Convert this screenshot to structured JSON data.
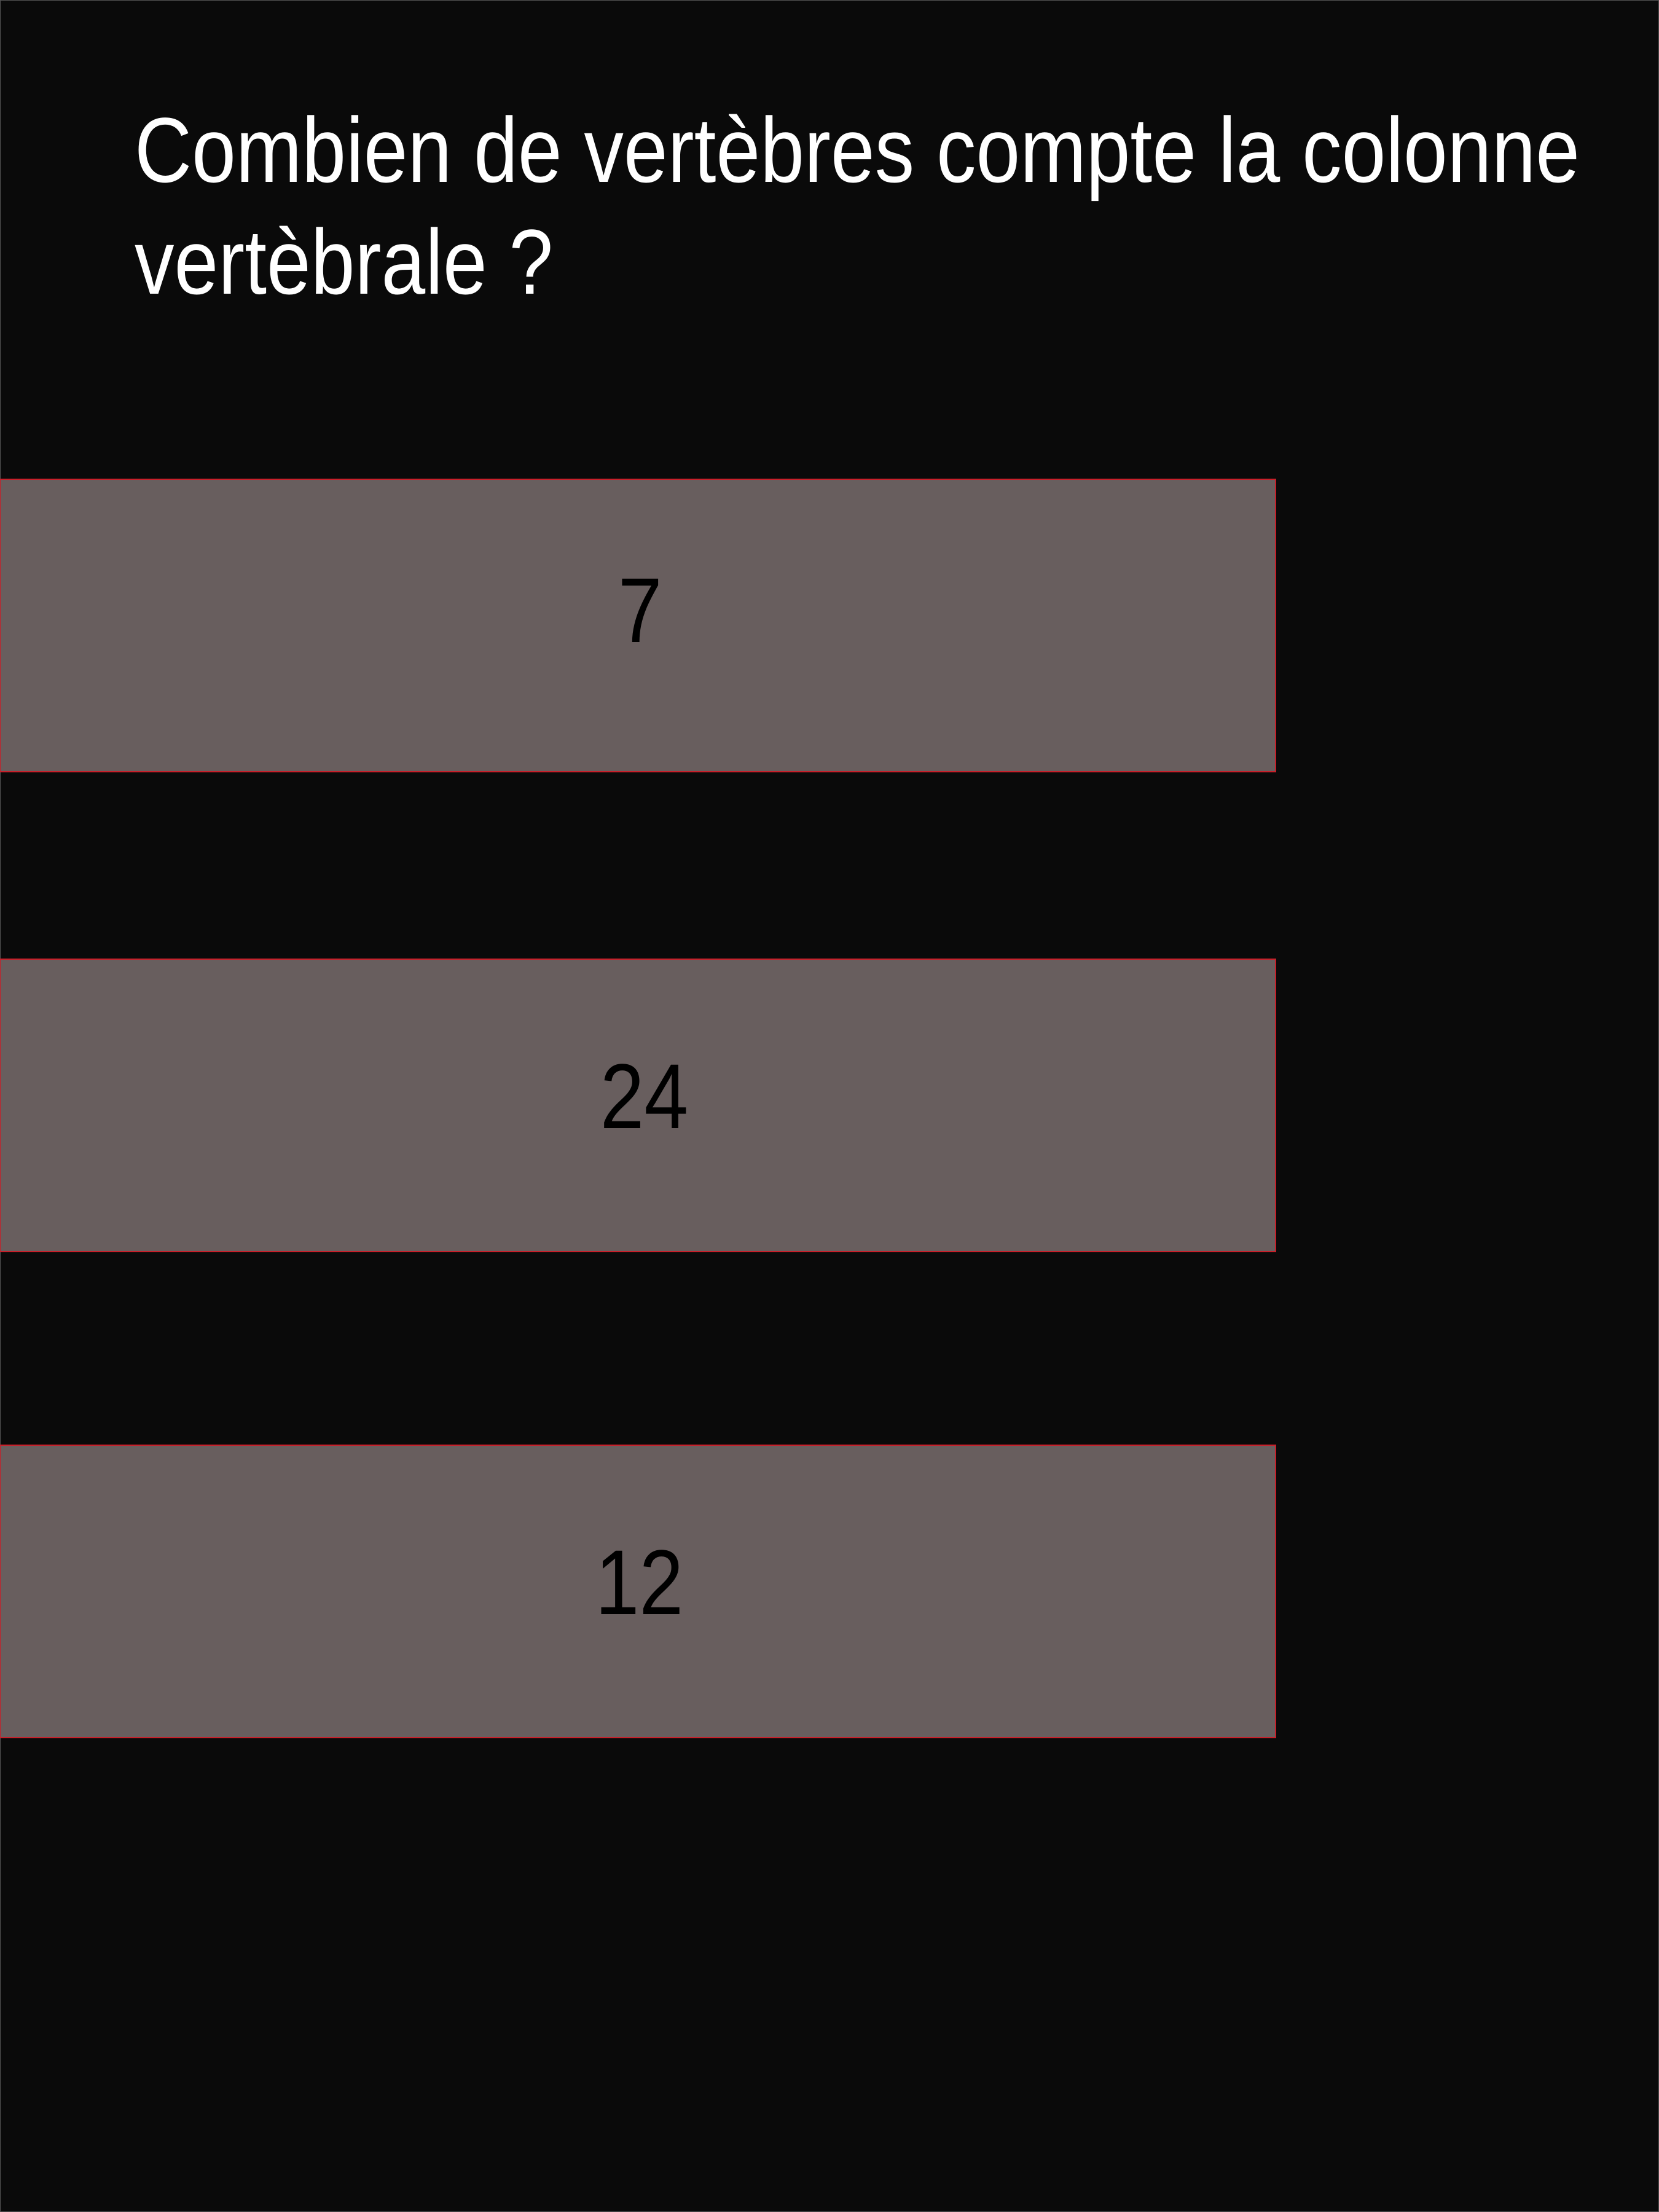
{
  "quiz": {
    "question": "Combien de vertèbres compte la colonne vertèbrale ?",
    "answers": [
      {
        "label": "7"
      },
      {
        "label": "24"
      },
      {
        "label": "12"
      }
    ]
  },
  "colors": {
    "background": "#0a0a0a",
    "answer_fill": "#685e5e",
    "answer_border": "#c8202a",
    "question_text": "#ffffff",
    "answer_text": "#000000"
  }
}
